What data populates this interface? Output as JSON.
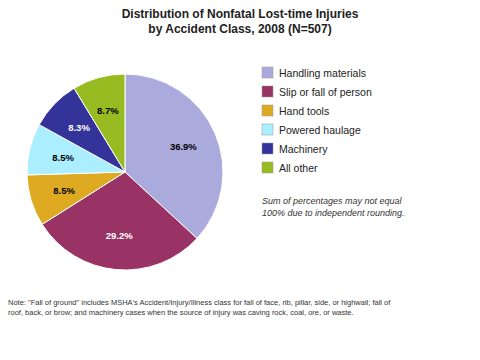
{
  "chart_data": {
    "type": "pie",
    "title": "Distribution of Nonfatal Lost-time Injuries\nby Accident Class, 2008 (N=507)",
    "categories": [
      "Handling materials",
      "Slip or fall of person",
      "Hand tools",
      "Powered haulage",
      "Machinery",
      "All other"
    ],
    "values": [
      36.9,
      29.2,
      8.5,
      8.5,
      8.3,
      8.7
    ],
    "value_labels": [
      "36.9%",
      "29.2%",
      "8.5%",
      "8.5%",
      "8.3%",
      "8.7%"
    ],
    "colors": [
      "#aaaadd",
      "#993366",
      "#ddaa22",
      "#aaeeff",
      "#333399",
      "#99bb22"
    ],
    "data_labels": true,
    "legend": "right",
    "annotations": [
      "Sum of percentages may not equal\n100% due to independent rounding.",
      "Note: \"Fall of ground\" includes MSHA's Accident/Injury/Illness class for fall of face, rib, pillar, side, or highwall; fall of\nroof, back, or brow; and machinery cases when the source of injury was caving rock, coal, ore, or waste."
    ]
  }
}
